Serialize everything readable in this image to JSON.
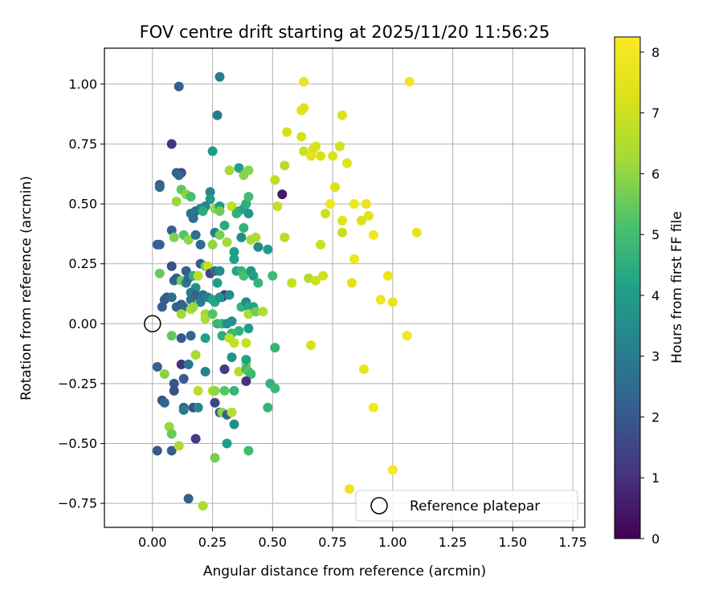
{
  "chart_data": {
    "type": "scatter",
    "title": "FOV centre drift starting at 2025/11/20 11:56:25",
    "xlabel": "Angular distance from reference (arcmin)",
    "ylabel": "Rotation from reference (arcmin)",
    "xlim": [
      -0.2,
      1.8
    ],
    "ylim": [
      -0.85,
      1.15
    ],
    "x_ticks": [
      0.0,
      0.25,
      0.5,
      0.75,
      1.0,
      1.25,
      1.5,
      1.75
    ],
    "x_tick_labels": [
      "0.00",
      "0.25",
      "0.50",
      "0.75",
      "1.00",
      "1.25",
      "1.50",
      "1.75"
    ],
    "y_ticks": [
      -0.75,
      -0.5,
      -0.25,
      0.0,
      0.25,
      0.5,
      0.75,
      1.0
    ],
    "y_tick_labels": [
      "−0.75",
      "−0.50",
      "−0.25",
      "0.00",
      "0.25",
      "0.50",
      "0.75",
      "1.00"
    ],
    "grid": true,
    "colorbar": {
      "label": "Hours from first FF file",
      "min": 0,
      "max": 8.25,
      "colormap": "viridis",
      "ticks": [
        0,
        1,
        2,
        3,
        4,
        5,
        6,
        7,
        8
      ],
      "tick_labels": [
        "0",
        "1",
        "2",
        "3",
        "4",
        "5",
        "6",
        "7",
        "8"
      ]
    },
    "reference_point": {
      "x": 0.0,
      "y": 0.0,
      "label": "Reference platepar"
    },
    "legend": {
      "location": "lower-right",
      "entries": [
        "Reference platepar"
      ]
    },
    "points": [
      [
        0.11,
        0.99,
        2.2
      ],
      [
        0.28,
        1.03,
        3.0
      ],
      [
        0.27,
        0.87,
        3.0
      ],
      [
        0.08,
        0.75,
        1.1
      ],
      [
        0.25,
        0.72,
        4.0
      ],
      [
        0.1,
        0.63,
        2.2
      ],
      [
        0.12,
        0.63,
        1.7
      ],
      [
        0.11,
        0.62,
        2.4
      ],
      [
        0.03,
        0.58,
        2.1
      ],
      [
        0.03,
        0.57,
        2.5
      ],
      [
        0.12,
        0.56,
        5.4
      ],
      [
        0.14,
        0.54,
        5.9
      ],
      [
        0.16,
        0.53,
        5.1
      ],
      [
        0.24,
        0.55,
        3.4
      ],
      [
        0.24,
        0.52,
        3.9
      ],
      [
        0.22,
        0.49,
        3.2
      ],
      [
        0.2,
        0.48,
        3.5
      ],
      [
        0.18,
        0.47,
        2.7
      ],
      [
        0.16,
        0.46,
        2.9
      ],
      [
        0.17,
        0.44,
        2.6
      ],
      [
        0.21,
        0.47,
        4.4
      ],
      [
        0.26,
        0.48,
        6.0
      ],
      [
        0.28,
        0.49,
        4.0
      ],
      [
        0.28,
        0.47,
        5.6
      ],
      [
        0.33,
        0.49,
        6.8
      ],
      [
        0.35,
        0.46,
        4.6
      ],
      [
        0.36,
        0.47,
        4.6
      ],
      [
        0.38,
        0.48,
        4.2
      ],
      [
        0.39,
        0.5,
        4.5
      ],
      [
        0.4,
        0.53,
        5.0
      ],
      [
        0.4,
        0.46,
        3.8
      ],
      [
        0.36,
        0.65,
        4.1
      ],
      [
        0.38,
        0.62,
        5.9
      ],
      [
        0.4,
        0.64,
        5.9
      ],
      [
        0.32,
        0.64,
        6.3
      ],
      [
        0.1,
        0.51,
        6.1
      ],
      [
        0.08,
        0.39,
        2.4
      ],
      [
        0.09,
        0.36,
        5.8
      ],
      [
        0.13,
        0.37,
        5.3
      ],
      [
        0.15,
        0.35,
        6.0
      ],
      [
        0.03,
        0.33,
        2.3
      ],
      [
        0.02,
        0.33,
        2.3
      ],
      [
        0.18,
        0.37,
        2.6
      ],
      [
        0.2,
        0.33,
        2.5
      ],
      [
        0.25,
        0.33,
        6.0
      ],
      [
        0.26,
        0.38,
        3.1
      ],
      [
        0.28,
        0.37,
        5.7
      ],
      [
        0.3,
        0.41,
        4.4
      ],
      [
        0.31,
        0.34,
        6.3
      ],
      [
        0.34,
        0.3,
        4.1
      ],
      [
        0.34,
        0.27,
        4.1
      ],
      [
        0.37,
        0.36,
        3.5
      ],
      [
        0.38,
        0.4,
        4.7
      ],
      [
        0.41,
        0.35,
        6.3
      ],
      [
        0.43,
        0.36,
        6.4
      ],
      [
        0.44,
        0.32,
        3.4
      ],
      [
        0.48,
        0.31,
        4.0
      ],
      [
        0.08,
        0.24,
        1.8
      ],
      [
        0.03,
        0.21,
        5.5
      ],
      [
        0.14,
        0.22,
        2.1
      ],
      [
        0.2,
        0.25,
        2.1
      ],
      [
        0.22,
        0.24,
        5.3
      ],
      [
        0.23,
        0.24,
        6.9
      ],
      [
        0.24,
        0.21,
        1.5
      ],
      [
        0.26,
        0.22,
        2.5
      ],
      [
        0.28,
        0.22,
        3.4
      ],
      [
        0.27,
        0.17,
        4.0
      ],
      [
        0.29,
        0.11,
        3.6
      ],
      [
        0.3,
        0.12,
        1.0
      ],
      [
        0.32,
        0.12,
        3.6
      ],
      [
        0.35,
        0.22,
        4.2
      ],
      [
        0.37,
        0.22,
        4.7
      ],
      [
        0.38,
        0.2,
        5.1
      ],
      [
        0.41,
        0.22,
        3.8
      ],
      [
        0.42,
        0.2,
        4.0
      ],
      [
        0.44,
        0.17,
        4.7
      ],
      [
        0.5,
        0.2,
        4.9
      ],
      [
        0.09,
        0.18,
        2.5
      ],
      [
        0.1,
        0.19,
        2.1
      ],
      [
        0.12,
        0.18,
        5.6
      ],
      [
        0.14,
        0.17,
        3.0
      ],
      [
        0.15,
        0.19,
        2.4
      ],
      [
        0.17,
        0.2,
        4.6
      ],
      [
        0.19,
        0.2,
        6.6
      ],
      [
        0.18,
        0.15,
        3.6
      ],
      [
        0.16,
        0.1,
        2.7
      ],
      [
        0.16,
        0.13,
        2.9
      ],
      [
        0.18,
        0.12,
        2.4
      ],
      [
        0.2,
        0.09,
        3.1
      ],
      [
        0.21,
        0.12,
        2.7
      ],
      [
        0.23,
        0.11,
        3.2
      ],
      [
        0.25,
        0.1,
        4.2
      ],
      [
        0.26,
        0.09,
        4.3
      ],
      [
        0.28,
        0.11,
        3.6
      ],
      [
        0.04,
        0.07,
        2.2
      ],
      [
        0.05,
        0.1,
        2.1
      ],
      [
        0.06,
        0.11,
        2.0
      ],
      [
        0.08,
        0.11,
        2.6
      ],
      [
        0.1,
        0.07,
        2.3
      ],
      [
        0.12,
        0.08,
        2.1
      ],
      [
        0.13,
        0.07,
        2.5
      ],
      [
        0.12,
        0.04,
        6.2
      ],
      [
        0.16,
        0.06,
        6.5
      ],
      [
        0.17,
        0.07,
        6.1
      ],
      [
        0.22,
        0.04,
        6.2
      ],
      [
        0.22,
        0.02,
        6.4
      ],
      [
        0.25,
        0.04,
        5.3
      ],
      [
        0.27,
        0.0,
        4.7
      ],
      [
        0.29,
        0.0,
        4.8
      ],
      [
        0.31,
        0.0,
        3.5
      ],
      [
        0.33,
        0.01,
        3.6
      ],
      [
        0.37,
        0.07,
        4.7
      ],
      [
        0.39,
        0.09,
        3.3
      ],
      [
        0.4,
        0.07,
        4.3
      ],
      [
        0.42,
        0.07,
        4.2
      ],
      [
        0.4,
        0.04,
        6.4
      ],
      [
        0.43,
        0.05,
        5.6
      ],
      [
        0.46,
        0.05,
        6.6
      ],
      [
        0.4,
        -0.02,
        4.0
      ],
      [
        0.36,
        -0.03,
        4.6
      ],
      [
        0.33,
        -0.04,
        4.8
      ],
      [
        0.29,
        -0.05,
        4.5
      ],
      [
        0.32,
        -0.06,
        6.9
      ],
      [
        0.34,
        -0.08,
        6.8
      ],
      [
        0.39,
        -0.08,
        6.9
      ],
      [
        0.22,
        -0.06,
        4.1
      ],
      [
        0.12,
        -0.06,
        2.0
      ],
      [
        0.08,
        -0.05,
        5.4
      ],
      [
        0.16,
        -0.05,
        2.4
      ],
      [
        0.18,
        -0.13,
        6.3
      ],
      [
        0.02,
        -0.18,
        2.2
      ],
      [
        0.05,
        -0.21,
        5.9
      ],
      [
        0.12,
        -0.17,
        1.0
      ],
      [
        0.15,
        -0.17,
        2.9
      ],
      [
        0.13,
        -0.23,
        2.1
      ],
      [
        0.09,
        -0.25,
        1.9
      ],
      [
        0.09,
        -0.28,
        1.8
      ],
      [
        0.04,
        -0.32,
        1.8
      ],
      [
        0.05,
        -0.33,
        2.3
      ],
      [
        0.13,
        -0.35,
        2.2
      ],
      [
        0.13,
        -0.36,
        3.0
      ],
      [
        0.17,
        -0.35,
        1.7
      ],
      [
        0.19,
        -0.35,
        3.3
      ],
      [
        0.19,
        -0.28,
        6.7
      ],
      [
        0.22,
        -0.2,
        3.2
      ],
      [
        0.25,
        -0.28,
        6.7
      ],
      [
        0.26,
        -0.28,
        6.0
      ],
      [
        0.26,
        -0.33,
        1.6
      ],
      [
        0.28,
        -0.37,
        2.1
      ],
      [
        0.29,
        -0.37,
        6.0
      ],
      [
        0.31,
        -0.38,
        2.4
      ],
      [
        0.33,
        -0.37,
        6.6
      ],
      [
        0.34,
        -0.42,
        3.5
      ],
      [
        0.31,
        -0.5,
        4.0
      ],
      [
        0.3,
        -0.28,
        5.3
      ],
      [
        0.34,
        -0.28,
        4.7
      ],
      [
        0.33,
        -0.14,
        3.7
      ],
      [
        0.36,
        -0.2,
        6.6
      ],
      [
        0.39,
        -0.17,
        6.1
      ],
      [
        0.39,
        -0.19,
        4.8
      ],
      [
        0.4,
        -0.2,
        5.3
      ],
      [
        0.41,
        -0.21,
        4.9
      ],
      [
        0.39,
        -0.15,
        4.2
      ],
      [
        0.39,
        -0.24,
        1.0
      ],
      [
        0.49,
        -0.25,
        4.6
      ],
      [
        0.51,
        -0.27,
        4.8
      ],
      [
        0.51,
        -0.1,
        4.7
      ],
      [
        0.48,
        -0.35,
        4.7
      ],
      [
        0.4,
        -0.53,
        5.0
      ],
      [
        0.02,
        -0.53,
        2.0
      ],
      [
        0.07,
        -0.43,
        6.1
      ],
      [
        0.08,
        -0.46,
        5.5
      ],
      [
        0.08,
        -0.53,
        2.2
      ],
      [
        0.11,
        -0.51,
        6.4
      ],
      [
        0.18,
        -0.48,
        1.3
      ],
      [
        0.26,
        -0.56,
        5.7
      ],
      [
        0.15,
        -0.73,
        2.2
      ],
      [
        0.21,
        -0.76,
        6.4
      ],
      [
        0.3,
        -0.19,
        1.3
      ],
      [
        0.54,
        0.54,
        0.5
      ],
      [
        0.51,
        0.6,
        6.7
      ],
      [
        0.55,
        0.66,
        6.6
      ],
      [
        0.52,
        0.49,
        6.8
      ],
      [
        0.55,
        0.36,
        6.6
      ],
      [
        0.56,
        0.8,
        7.1
      ],
      [
        0.58,
        0.17,
        6.9
      ],
      [
        0.62,
        0.89,
        7.4
      ],
      [
        0.63,
        0.9,
        7.3
      ],
      [
        0.62,
        0.78,
        7.2
      ],
      [
        0.63,
        0.72,
        7.0
      ],
      [
        0.63,
        1.01,
        7.7
      ],
      [
        0.65,
        0.19,
        6.5
      ],
      [
        0.67,
        0.73,
        7.2
      ],
      [
        0.68,
        0.74,
        7.3
      ],
      [
        0.7,
        0.7,
        7.2
      ],
      [
        0.68,
        0.18,
        6.9
      ],
      [
        0.66,
        0.7,
        7.5
      ],
      [
        0.7,
        0.33,
        6.9
      ],
      [
        0.71,
        0.2,
        7.0
      ],
      [
        0.72,
        0.46,
        7.0
      ],
      [
        0.74,
        0.5,
        7.8
      ],
      [
        0.75,
        0.7,
        7.3
      ],
      [
        0.76,
        0.57,
        7.2
      ],
      [
        0.78,
        0.74,
        7.1
      ],
      [
        0.79,
        0.87,
        7.3
      ],
      [
        0.79,
        0.38,
        6.9
      ],
      [
        0.79,
        0.43,
        7.4
      ],
      [
        0.81,
        0.67,
        7.4
      ],
      [
        0.83,
        0.17,
        7.5
      ],
      [
        0.84,
        0.27,
        7.8
      ],
      [
        0.84,
        0.5,
        7.8
      ],
      [
        0.87,
        0.43,
        7.3
      ],
      [
        0.89,
        0.5,
        7.7
      ],
      [
        0.9,
        0.45,
        7.4
      ],
      [
        0.92,
        0.37,
        8.0
      ],
      [
        0.95,
        0.1,
        7.8
      ],
      [
        0.98,
        0.2,
        7.8
      ],
      [
        1.0,
        0.09,
        7.7
      ],
      [
        1.07,
        1.01,
        7.9
      ],
      [
        1.1,
        0.38,
        7.6
      ],
      [
        1.06,
        -0.05,
        8.0
      ],
      [
        0.66,
        -0.09,
        7.2
      ],
      [
        0.88,
        -0.19,
        7.6
      ],
      [
        0.92,
        -0.35,
        8.0
      ],
      [
        1.0,
        -0.61,
        8.1
      ],
      [
        0.82,
        -0.69,
        7.8
      ]
    ]
  }
}
